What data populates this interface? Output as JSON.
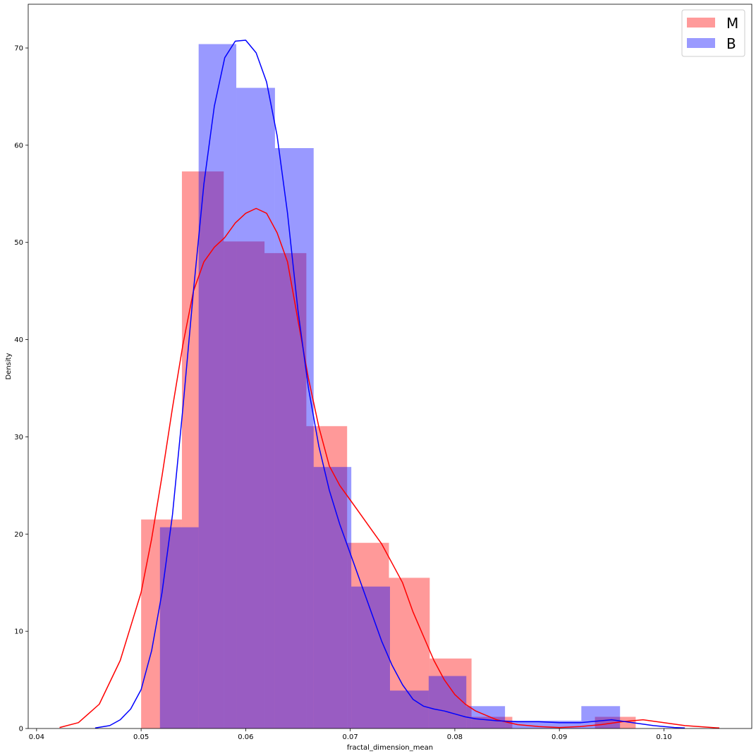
{
  "chart_data": {
    "type": "histogram_kde",
    "title": "",
    "xlabel": "fractal_dimension_mean",
    "ylabel": "Density",
    "xlim": [
      0.0392,
      0.1084
    ],
    "ylim": [
      0,
      74.5
    ],
    "xticks": [
      0.04,
      0.05,
      0.06,
      0.07,
      0.08,
      0.09,
      0.1
    ],
    "xtick_labels": [
      "0.04",
      "0.05",
      "0.06",
      "0.07",
      "0.08",
      "0.09",
      "0.10"
    ],
    "yticks": [
      0,
      10,
      20,
      30,
      40,
      50,
      60,
      70
    ],
    "ytick_labels": [
      "0",
      "10",
      "20",
      "30",
      "40",
      "50",
      "60",
      "70"
    ],
    "legend": {
      "position": "upper right"
    },
    "series": [
      {
        "name": "M",
        "hist_color": "#ff9a9a",
        "line_color": "#ff0000",
        "bins": [
          {
            "x0": 0.05,
            "x1": 0.0539,
            "density": 21.5
          },
          {
            "x0": 0.0539,
            "x1": 0.0579,
            "density": 57.3
          },
          {
            "x0": 0.0579,
            "x1": 0.0618,
            "density": 50.1
          },
          {
            "x0": 0.0618,
            "x1": 0.0658,
            "density": 48.9
          },
          {
            "x0": 0.0658,
            "x1": 0.0697,
            "density": 31.1
          },
          {
            "x0": 0.0697,
            "x1": 0.0737,
            "density": 19.1
          },
          {
            "x0": 0.0737,
            "x1": 0.0776,
            "density": 15.5
          },
          {
            "x0": 0.0776,
            "x1": 0.0816,
            "density": 7.2
          },
          {
            "x0": 0.0816,
            "x1": 0.0855,
            "density": 1.2
          },
          {
            "x0": 0.0855,
            "x1": 0.0894,
            "density": 0
          },
          {
            "x0": 0.0894,
            "x1": 0.0934,
            "density": 0
          },
          {
            "x0": 0.0934,
            "x1": 0.0973,
            "density": 1.2
          }
        ],
        "kde": {
          "x": [
            0.0422,
            0.044,
            0.046,
            0.048,
            0.049,
            0.05,
            0.051,
            0.052,
            0.053,
            0.054,
            0.055,
            0.056,
            0.057,
            0.058,
            0.059,
            0.06,
            0.061,
            0.062,
            0.063,
            0.064,
            0.065,
            0.066,
            0.067,
            0.068,
            0.069,
            0.07,
            0.071,
            0.072,
            0.073,
            0.074,
            0.075,
            0.076,
            0.077,
            0.078,
            0.079,
            0.08,
            0.081,
            0.082,
            0.084,
            0.086,
            0.088,
            0.09,
            0.092,
            0.094,
            0.096,
            0.098,
            0.1,
            0.102,
            0.1053
          ],
          "y": [
            0.1,
            0.6,
            2.5,
            7.0,
            10.5,
            14.0,
            19.5,
            26.0,
            33.0,
            39.5,
            45.0,
            48.0,
            49.5,
            50.5,
            52.0,
            53.0,
            53.5,
            53.0,
            51.0,
            48.0,
            42.0,
            36.0,
            31.0,
            27.0,
            25.0,
            23.5,
            22.0,
            20.5,
            19.0,
            17.0,
            15.0,
            12.0,
            9.5,
            7.0,
            5.0,
            3.5,
            2.5,
            1.8,
            0.9,
            0.4,
            0.2,
            0.1,
            0.2,
            0.4,
            0.7,
            0.9,
            0.6,
            0.3,
            0.05
          ]
        }
      },
      {
        "name": "B",
        "hist_color": "#9a9aff",
        "line_color": "#0000ff",
        "bins": [
          {
            "x0": 0.0518,
            "x1": 0.0555,
            "density": 20.7
          },
          {
            "x0": 0.0555,
            "x1": 0.0591,
            "density": 70.4
          },
          {
            "x0": 0.0591,
            "x1": 0.0628,
            "density": 65.9
          },
          {
            "x0": 0.0628,
            "x1": 0.0665,
            "density": 59.7
          },
          {
            "x0": 0.0665,
            "x1": 0.0701,
            "density": 26.9
          },
          {
            "x0": 0.0701,
            "x1": 0.0738,
            "density": 14.6
          },
          {
            "x0": 0.0738,
            "x1": 0.0775,
            "density": 3.9
          },
          {
            "x0": 0.0775,
            "x1": 0.0811,
            "density": 5.4
          },
          {
            "x0": 0.0811,
            "x1": 0.0848,
            "density": 2.3
          },
          {
            "x0": 0.0848,
            "x1": 0.0885,
            "density": 0.8
          },
          {
            "x0": 0.0885,
            "x1": 0.0921,
            "density": 0.8
          },
          {
            "x0": 0.0921,
            "x1": 0.0958,
            "density": 2.3
          }
        ],
        "kde": {
          "x": [
            0.0456,
            0.047,
            0.048,
            0.049,
            0.05,
            0.051,
            0.052,
            0.053,
            0.054,
            0.055,
            0.056,
            0.057,
            0.058,
            0.059,
            0.06,
            0.061,
            0.062,
            0.063,
            0.064,
            0.065,
            0.066,
            0.067,
            0.068,
            0.069,
            0.07,
            0.071,
            0.072,
            0.073,
            0.074,
            0.075,
            0.076,
            0.077,
            0.078,
            0.079,
            0.08,
            0.081,
            0.082,
            0.084,
            0.086,
            0.088,
            0.09,
            0.092,
            0.094,
            0.095,
            0.097,
            0.099,
            0.101,
            0.102
          ],
          "y": [
            0.05,
            0.3,
            0.9,
            2.0,
            4.0,
            8.0,
            14.0,
            22.0,
            33.0,
            45.0,
            56.0,
            64.0,
            69.0,
            70.7,
            70.8,
            69.5,
            66.5,
            61.0,
            53.0,
            43.0,
            35.0,
            29.0,
            24.5,
            21.0,
            18.0,
            15.0,
            12.0,
            9.0,
            6.5,
            4.5,
            3.0,
            2.3,
            2.0,
            1.8,
            1.5,
            1.2,
            1.0,
            0.8,
            0.7,
            0.7,
            0.6,
            0.6,
            0.8,
            0.9,
            0.6,
            0.3,
            0.1,
            0.05
          ]
        }
      }
    ]
  }
}
